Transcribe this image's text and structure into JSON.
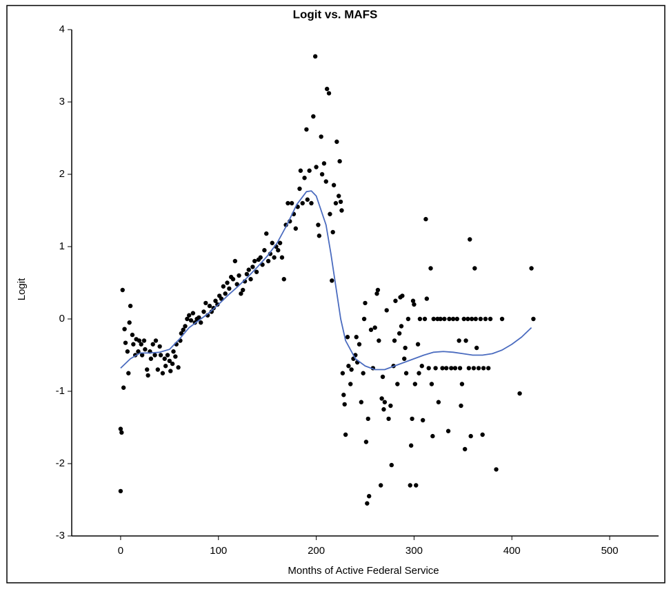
{
  "chart_data": {
    "type": "scatter",
    "title": "Logit vs. MAFS",
    "x_label": "Months of Active Federal Service",
    "y_label": "Logit",
    "xlim": [
      -50,
      550
    ],
    "xticks": [
      0,
      100,
      200,
      300,
      400,
      500
    ],
    "ylim": [
      -3,
      4
    ],
    "yticks": [
      -3,
      -2,
      -1,
      0,
      1,
      2,
      3,
      4
    ],
    "series": [
      {
        "type": "scatter",
        "color": "#000000",
        "x": [
          0,
          0,
          1,
          2,
          3,
          4,
          5,
          7,
          8,
          9,
          10,
          12,
          13,
          15,
          16,
          18,
          19,
          21,
          22,
          24,
          25,
          27,
          28,
          30,
          31,
          33,
          35,
          36,
          38,
          40,
          41,
          43,
          45,
          46,
          48,
          50,
          51,
          53,
          54,
          56,
          57,
          59,
          61,
          62,
          64,
          66,
          68,
          70,
          72,
          74,
          76,
          78,
          80,
          82,
          85,
          87,
          89,
          91,
          93,
          95,
          97,
          99,
          101,
          103,
          105,
          107,
          109,
          111,
          113,
          115,
          117,
          119,
          121,
          123,
          125,
          127,
          129,
          131,
          133,
          135,
          137,
          139,
          141,
          143,
          145,
          147,
          149,
          151,
          153,
          155,
          157,
          159,
          161,
          163,
          165,
          167,
          169,
          171,
          173,
          175,
          177,
          179,
          181,
          183,
          184,
          186,
          188,
          190,
          191,
          193,
          195,
          197,
          199,
          200,
          202,
          203,
          205,
          206,
          208,
          210,
          211,
          213,
          214,
          216,
          217,
          218,
          220,
          221,
          223,
          224,
          225,
          226,
          227,
          228,
          229,
          230,
          232,
          233,
          235,
          236,
          238,
          240,
          241,
          242,
          244,
          246,
          248,
          249,
          250,
          251,
          252,
          253,
          254,
          256,
          258,
          260,
          262,
          263,
          264,
          266,
          267,
          268,
          269,
          270,
          272,
          274,
          276,
          277,
          279,
          280,
          281,
          283,
          285,
          286,
          287,
          288,
          290,
          291,
          292,
          294,
          296,
          297,
          298,
          299,
          300,
          301,
          302,
          304,
          305,
          306,
          308,
          309,
          311,
          312,
          313,
          315,
          317,
          318,
          319,
          320,
          322,
          324,
          325,
          327,
          329,
          331,
          333,
          335,
          336,
          338,
          340,
          342,
          344,
          346,
          347,
          348,
          349,
          351,
          352,
          353,
          355,
          356,
          357,
          358,
          359,
          361,
          362,
          363,
          364,
          366,
          368,
          370,
          371,
          373,
          376,
          378,
          384,
          390,
          408,
          420,
          422
        ],
        "values": [
          -2.38,
          -1.52,
          -1.57,
          0.4,
          -0.95,
          -0.14,
          -0.33,
          -0.45,
          -0.75,
          -0.05,
          0.18,
          -0.22,
          -0.35,
          -0.5,
          -0.28,
          -0.45,
          -0.3,
          -0.35,
          -0.5,
          -0.3,
          -0.42,
          -0.7,
          -0.78,
          -0.45,
          -0.55,
          -0.35,
          -0.5,
          -0.3,
          -0.7,
          -0.38,
          -0.5,
          -0.75,
          -0.55,
          -0.65,
          -0.5,
          -0.58,
          -0.72,
          -0.62,
          -0.45,
          -0.52,
          -0.35,
          -0.67,
          -0.3,
          -0.2,
          -0.15,
          -0.1,
          0.0,
          0.05,
          -0.02,
          0.08,
          -0.05,
          0.0,
          0.02,
          -0.05,
          0.1,
          0.22,
          0.05,
          0.18,
          0.1,
          0.15,
          0.25,
          0.2,
          0.32,
          0.28,
          0.45,
          0.35,
          0.5,
          0.42,
          0.58,
          0.55,
          0.8,
          0.48,
          0.6,
          0.35,
          0.4,
          0.52,
          0.62,
          0.68,
          0.55,
          0.72,
          0.8,
          0.65,
          0.82,
          0.85,
          0.75,
          0.95,
          1.18,
          0.8,
          0.9,
          1.05,
          0.85,
          1.0,
          0.95,
          1.05,
          0.85,
          0.55,
          1.3,
          1.6,
          1.35,
          1.6,
          1.45,
          1.25,
          1.55,
          1.8,
          2.05,
          1.6,
          1.95,
          2.62,
          1.65,
          2.05,
          1.6,
          2.8,
          3.63,
          2.1,
          1.3,
          1.15,
          2.52,
          2.0,
          2.15,
          1.9,
          3.18,
          3.12,
          1.45,
          0.53,
          1.2,
          1.85,
          1.6,
          2.45,
          1.7,
          2.18,
          1.62,
          1.5,
          -0.75,
          -1.05,
          -1.18,
          -1.6,
          -0.25,
          -0.65,
          -0.9,
          -0.7,
          -0.55,
          -0.5,
          -0.25,
          -0.6,
          -0.35,
          -1.15,
          -0.75,
          0.0,
          0.22,
          -1.7,
          -2.55,
          -1.38,
          -2.45,
          -0.15,
          -0.68,
          -0.12,
          0.35,
          0.4,
          -0.3,
          -2.3,
          -1.1,
          -0.8,
          -1.25,
          -1.15,
          0.12,
          -1.38,
          -1.2,
          -2.02,
          -0.65,
          -0.3,
          0.25,
          -0.9,
          -0.2,
          0.3,
          -0.1,
          0.32,
          -0.55,
          -0.4,
          -0.75,
          0.0,
          -2.3,
          -1.75,
          -1.38,
          0.25,
          0.2,
          -0.9,
          -2.3,
          -0.35,
          -0.75,
          0.0,
          -0.65,
          -1.4,
          0.0,
          1.38,
          0.28,
          -0.68,
          0.7,
          -0.9,
          -1.62,
          0.0,
          -0.68,
          0.0,
          -1.15,
          0.0,
          -0.68,
          0.0,
          -0.68,
          -1.55,
          0.0,
          -0.68,
          0.0,
          -0.68,
          0.0,
          -0.3,
          -0.68,
          -1.2,
          -0.9,
          0.0,
          -1.8,
          -0.3,
          0.0,
          -0.68,
          1.1,
          -1.62,
          0.0,
          -0.68,
          0.7,
          0.0,
          -0.4,
          -0.68,
          0.0,
          -1.6,
          -0.68,
          0.0,
          -0.68,
          0.0,
          -2.08,
          0.0,
          -1.03,
          0.7,
          0.0
        ]
      },
      {
        "type": "line",
        "color": "#4a6bbf",
        "x": [
          0,
          10,
          20,
          30,
          40,
          50,
          60,
          70,
          80,
          90,
          100,
          110,
          120,
          130,
          140,
          150,
          160,
          170,
          180,
          190,
          195,
          200,
          210,
          215,
          220,
          225,
          230,
          240,
          250,
          260,
          270,
          280,
          290,
          300,
          310,
          320,
          330,
          340,
          350,
          360,
          370,
          380,
          390,
          400,
          410,
          420
        ],
        "values": [
          -0.68,
          -0.55,
          -0.47,
          -0.47,
          -0.46,
          -0.42,
          -0.28,
          -0.12,
          -0.02,
          0.08,
          0.2,
          0.33,
          0.45,
          0.58,
          0.72,
          0.87,
          1.05,
          1.3,
          1.58,
          1.76,
          1.77,
          1.7,
          1.3,
          0.9,
          0.45,
          0.0,
          -0.3,
          -0.55,
          -0.65,
          -0.7,
          -0.7,
          -0.65,
          -0.6,
          -0.55,
          -0.5,
          -0.46,
          -0.45,
          -0.46,
          -0.48,
          -0.5,
          -0.5,
          -0.48,
          -0.43,
          -0.35,
          -0.25,
          -0.12
        ]
      }
    ]
  }
}
